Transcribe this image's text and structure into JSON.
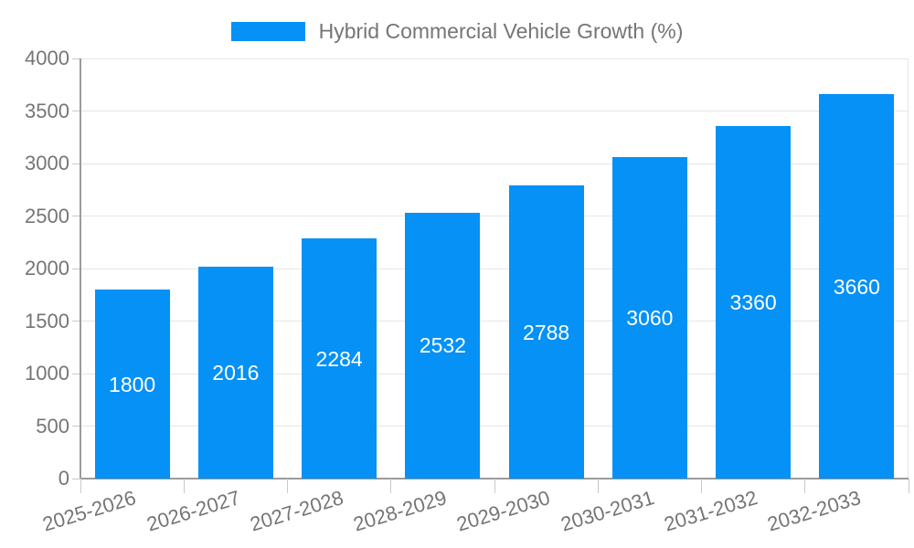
{
  "legend": {
    "label": "Hybrid Commercial Vehicle Growth (%)"
  },
  "chart_data": {
    "type": "bar",
    "title": "Hybrid Commercial Vehicle Growth (%)",
    "categories": [
      "2025-2026",
      "2026-2027",
      "2027-2028",
      "2028-2029",
      "2029-2030",
      "2030-2031",
      "2031-2032",
      "2032-2033"
    ],
    "values": [
      1800,
      2016,
      2284,
      2532,
      2788,
      3060,
      3360,
      3660
    ],
    "series": [
      {
        "name": "Hybrid Commercial Vehicle Growth (%)",
        "values": [
          1800,
          2016,
          2284,
          2532,
          2788,
          3060,
          3360,
          3660
        ]
      }
    ],
    "xlabel": "",
    "ylabel": "",
    "ylim": [
      0,
      4000
    ],
    "yticks": [
      0,
      500,
      1000,
      1500,
      2000,
      2500,
      3000,
      3500,
      4000
    ],
    "grid": true,
    "legend_position": "top-center",
    "x_label_rotation_deg": -17,
    "value_labels_position": "inside-center",
    "colors": {
      "bar": "#0591f5",
      "value_label": "#ffffff",
      "tick_label": "#757575",
      "axis_line": "#9b9b9b",
      "gridline": "#e6e6e6",
      "tick_mark": "#c9c9c9",
      "background": "#ffffff"
    }
  }
}
